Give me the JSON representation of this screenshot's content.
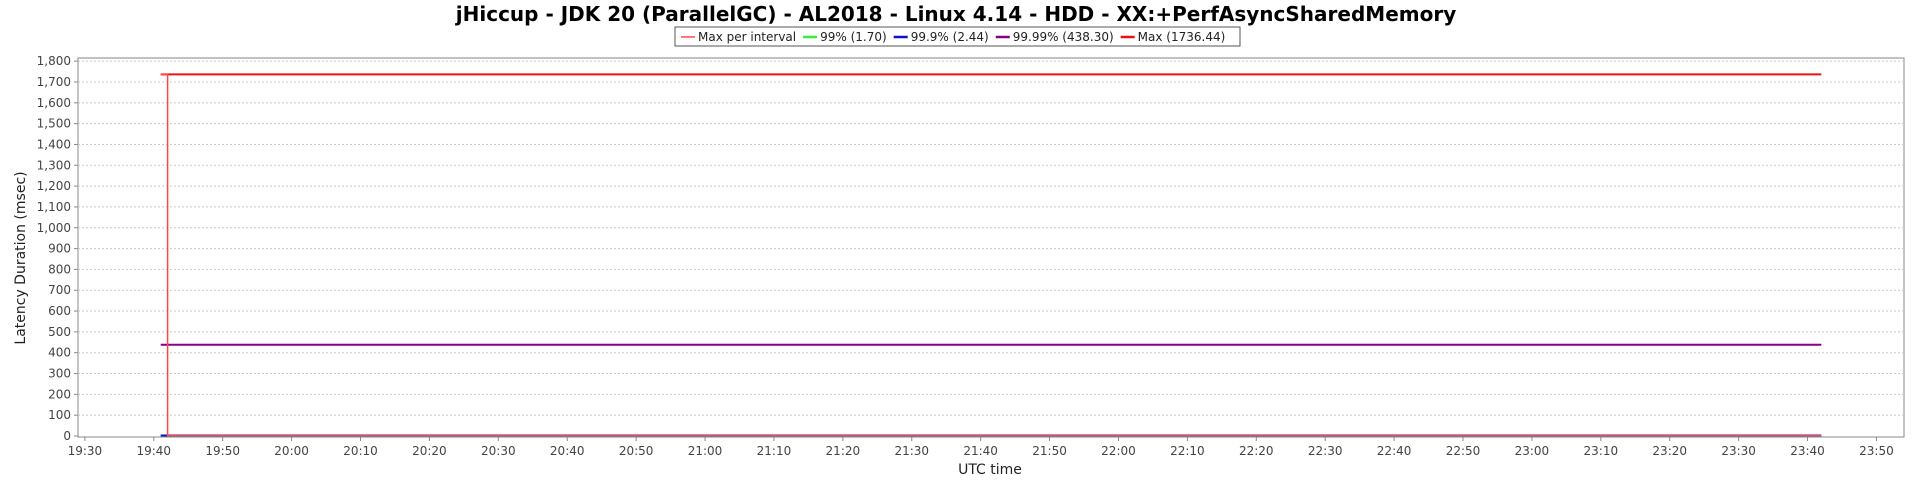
{
  "chart_data": {
    "type": "line",
    "title": "jHiccup - JDK 20 (ParallelGC) - AL2018 - Linux 4.14 - HDD - XX:+PerfAsyncSharedMemory",
    "xlabel": "UTC time",
    "ylabel": "Latency Duration (msec)",
    "x_ticks": [
      "19:30",
      "19:40",
      "19:50",
      "20:00",
      "20:10",
      "20:20",
      "20:30",
      "20:40",
      "20:50",
      "21:00",
      "21:10",
      "21:20",
      "21:30",
      "21:40",
      "21:50",
      "22:00",
      "22:10",
      "22:20",
      "22:30",
      "22:40",
      "22:50",
      "23:00",
      "23:10",
      "23:20",
      "23:30",
      "23:40",
      "23:50"
    ],
    "x_range": [
      "19:29",
      "23:54"
    ],
    "y_ticks": [
      "0",
      "100",
      "200",
      "300",
      "400",
      "500",
      "600",
      "700",
      "800",
      "900",
      "1,000",
      "1,100",
      "1,200",
      "1,300",
      "1,400",
      "1,500",
      "1,600",
      "1,700",
      "1,800"
    ],
    "ylim": [
      0,
      1820
    ],
    "grid": true,
    "legend_position": "top-center",
    "series": [
      {
        "name": "Max per interval",
        "color": "#ff4444",
        "x": [
          "19:41",
          "19:42",
          "19:42",
          "23:42"
        ],
        "y": [
          1736.44,
          1736.44,
          2,
          2
        ]
      },
      {
        "name": "99% (1.70)",
        "color": "#33ee33",
        "x": [
          "19:41",
          "23:42"
        ],
        "y": [
          1.7,
          1.7
        ]
      },
      {
        "name": "99.9% (2.44)",
        "color": "#1111cc",
        "x": [
          "19:41",
          "23:42"
        ],
        "y": [
          2.44,
          2.44
        ]
      },
      {
        "name": "99.99% (438.30)",
        "color": "#880088",
        "x": [
          "19:41",
          "23:42"
        ],
        "y": [
          438.3,
          438.3
        ]
      },
      {
        "name": "Max (1736.44)",
        "color": "#ee1111",
        "x": [
          "19:41",
          "23:42"
        ],
        "y": [
          1736.44,
          1736.44
        ]
      }
    ]
  }
}
